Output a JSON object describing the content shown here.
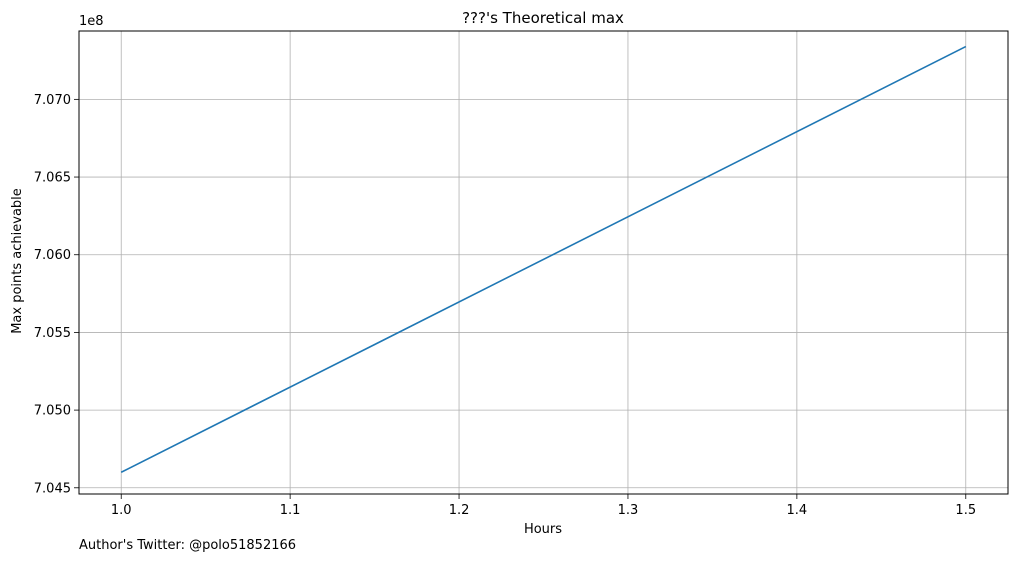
{
  "chart_data": {
    "type": "line",
    "title": "???'s Theoretical max",
    "xlabel": "Hours",
    "ylabel": "Max points achievable",
    "y_offset_label": "1e8",
    "x_ticks": [
      1.0,
      1.1,
      1.2,
      1.3,
      1.4,
      1.5
    ],
    "x_tick_labels": [
      "1.0",
      "1.1",
      "1.2",
      "1.3",
      "1.4",
      "1.5"
    ],
    "y_ticks": [
      7.045,
      7.05,
      7.055,
      7.06,
      7.065,
      7.07
    ],
    "y_tick_labels": [
      "7.045",
      "7.050",
      "7.055",
      "7.060",
      "7.065",
      "7.070"
    ],
    "xlim": [
      0.975,
      1.525
    ],
    "ylim": [
      7.0446,
      7.0744
    ],
    "grid": true,
    "line_color": "#1f77b4",
    "series": [
      {
        "x": [
          1.0,
          1.5
        ],
        "y": [
          7.046,
          7.0734
        ]
      }
    ]
  },
  "footer": {
    "text": "Author's Twitter: @polo51852166"
  }
}
